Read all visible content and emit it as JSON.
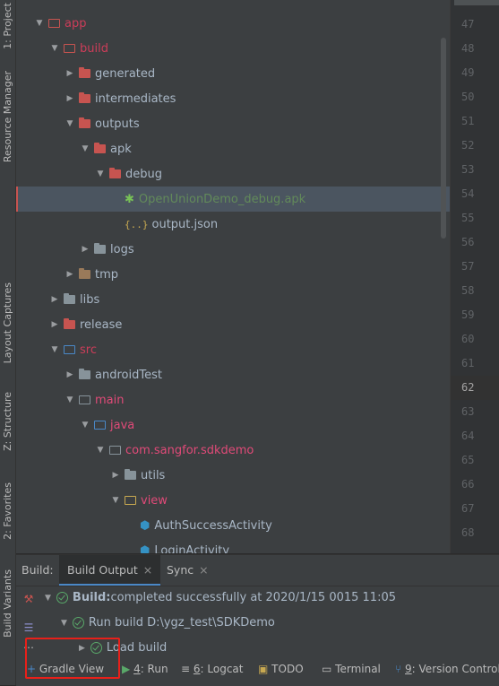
{
  "left_tabs": [
    {
      "label": "1: Project"
    },
    {
      "label": "Resource Manager"
    },
    {
      "label": "Layout Captures"
    },
    {
      "label": "Z: Structure"
    },
    {
      "label": "2: Favorites"
    },
    {
      "label": "Build Variants"
    }
  ],
  "tree": [
    {
      "label": "app",
      "color": "#cc3d59",
      "icon": "folder-open-icon"
    },
    {
      "label": "build",
      "color": "#cc3d59",
      "icon": "folder-open-icon"
    },
    {
      "label": "generated",
      "color": "#a9b7c6",
      "icon": "folder-icon"
    },
    {
      "label": "intermediates",
      "color": "#a9b7c6",
      "icon": "folder-icon"
    },
    {
      "label": "outputs",
      "color": "#a9b7c6",
      "icon": "folder-open-icon"
    },
    {
      "label": "apk",
      "color": "#a9b7c6",
      "icon": "folder-open-icon"
    },
    {
      "label": "debug",
      "color": "#a9b7c6",
      "icon": "folder-open-icon"
    },
    {
      "label": "OpenUnionDemo_debug.apk",
      "color": "#628a5a",
      "icon": "android-icon"
    },
    {
      "label": "output.json",
      "color": "#a9b7c6",
      "icon": "json-icon"
    },
    {
      "label": "logs",
      "color": "#a9b7c6",
      "icon": "folder-icon"
    },
    {
      "label": "tmp",
      "color": "#a9b7c6",
      "icon": "folder-icon"
    },
    {
      "label": "libs",
      "color": "#a9b7c6",
      "icon": "folder-icon"
    },
    {
      "label": "release",
      "color": "#a9b7c6",
      "icon": "folder-icon"
    },
    {
      "label": "src",
      "color": "#cc3d59",
      "icon": "folder-open-icon"
    },
    {
      "label": "androidTest",
      "color": "#a9b7c6",
      "icon": "folder-icon"
    },
    {
      "label": "main",
      "color": "#e04a78",
      "icon": "folder-open-icon"
    },
    {
      "label": "java",
      "color": "#e04a78",
      "icon": "folder-open-icon"
    },
    {
      "label": "com.sangfor.sdkdemo",
      "color": "#e04a78",
      "icon": "package-icon"
    },
    {
      "label": "utils",
      "color": "#a9b7c6",
      "icon": "package-icon"
    },
    {
      "label": "view",
      "color": "#e04a78",
      "icon": "package-icon"
    },
    {
      "label": "AuthSuccessActivity",
      "color": "#a9b7c6",
      "icon": "class-icon"
    },
    {
      "label": "LoginActivity",
      "color": "#a9b7c6",
      "icon": "class-icon"
    }
  ],
  "line_numbers": [
    "47",
    "48",
    "49",
    "50",
    "51",
    "52",
    "53",
    "54",
    "55",
    "56",
    "57",
    "58",
    "59",
    "60",
    "61",
    "62",
    "63",
    "64",
    "65",
    "66",
    "67",
    "68"
  ],
  "build_panel": {
    "prefix": "Build:",
    "tabs": [
      {
        "label": "Build Output",
        "close": "×"
      },
      {
        "label": "Sync",
        "close": "×"
      }
    ],
    "rows": [
      {
        "bold": "Build:",
        "text": " completed successfully at 2020/1/15 0015 11:05"
      },
      {
        "bold": "",
        "text": "Run build D:\\ygz_test\\SDKDemo"
      },
      {
        "bold": "",
        "text": "Load build"
      }
    ]
  },
  "statusbar": {
    "gradle": "Gradle View",
    "run": {
      "num": "4",
      "rest": ": Run"
    },
    "logcat": {
      "num": "6",
      "rest": ": Logcat"
    },
    "todo": "TODO",
    "terminal": "Terminal",
    "vc": {
      "num": "9",
      "rest": ": Version Control"
    }
  }
}
